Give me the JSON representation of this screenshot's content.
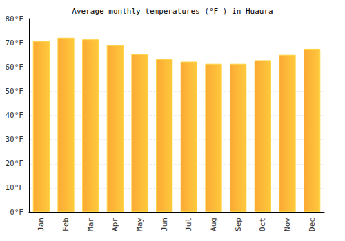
{
  "chart_data": {
    "type": "bar",
    "title": "Average monthly temperatures (°F ) in Huaura",
    "categories": [
      "Jan",
      "Feb",
      "Mar",
      "Apr",
      "May",
      "Jun",
      "Jul",
      "Aug",
      "Sep",
      "Oct",
      "Nov",
      "Dec"
    ],
    "values": [
      70.7,
      72.1,
      71.4,
      69.0,
      65.3,
      63.3,
      62.2,
      61.3,
      61.3,
      62.8,
      65.0,
      67.5
    ],
    "color": "#fbaa35",
    "ylim": [
      0,
      80
    ],
    "yticks": [
      {
        "value": 0,
        "label": "0°F"
      },
      {
        "value": 10,
        "label": "10°F"
      },
      {
        "value": 20,
        "label": "20°F"
      },
      {
        "value": 30,
        "label": "30°F"
      },
      {
        "value": 40,
        "label": "40°F"
      },
      {
        "value": 50,
        "label": "50°F"
      },
      {
        "value": 60,
        "label": "60°F"
      },
      {
        "value": 70,
        "label": "70°F"
      },
      {
        "value": 80,
        "label": "80°F"
      }
    ],
    "grid": true
  }
}
